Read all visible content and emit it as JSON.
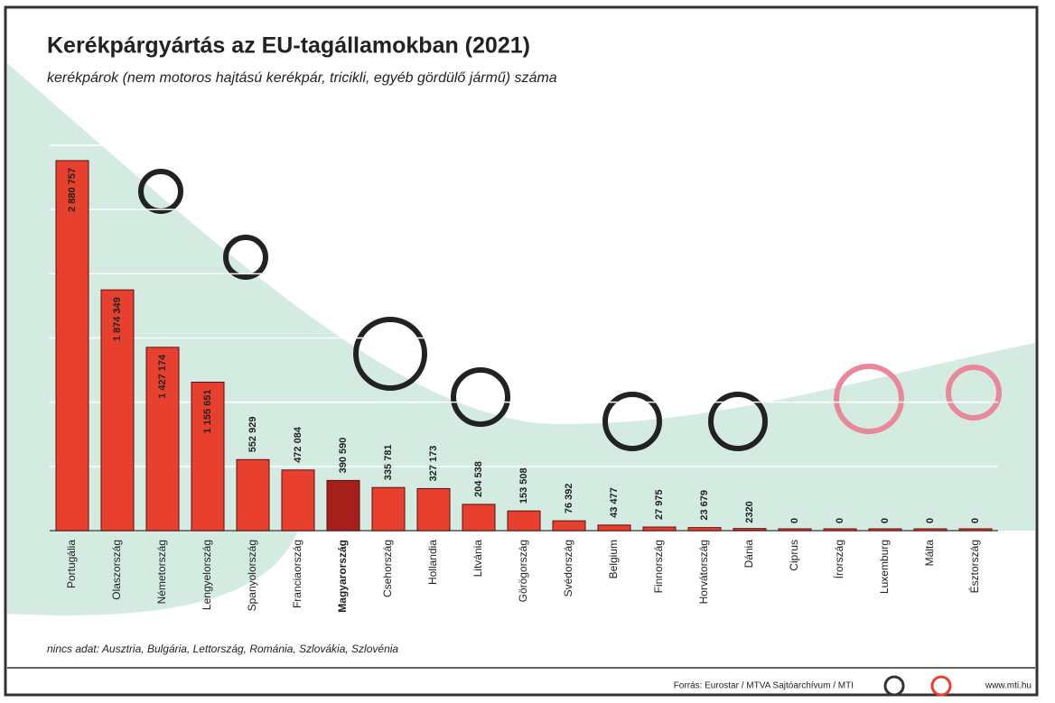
{
  "chart_data": {
    "type": "bar",
    "title": "Kerékpárgyártás az EU-tagállamokban (2021)",
    "subtitle": "kerékpárok (nem motoros hajtású kerékpár, tricikli, egyéb gördülő jármű) száma",
    "categories": [
      "Portugália",
      "Olaszország",
      "Németország",
      "Lengyelország",
      "Spanyolország",
      "Franciaország",
      "Magyarország",
      "Csehország",
      "Hollandia",
      "Litvánia",
      "Görögország",
      "Svédország",
      "Belgium",
      "Finnország",
      "Horvátország",
      "Dánia",
      "Ciprus",
      "Írország",
      "Luxemburg",
      "Málta",
      "Észtország"
    ],
    "values": [
      2880757,
      1874349,
      1427174,
      1155651,
      552929,
      472084,
      390590,
      335781,
      327173,
      204538,
      153508,
      76392,
      43477,
      27975,
      23679,
      2320,
      0,
      0,
      0,
      0,
      0
    ],
    "value_labels": [
      "2 880 757",
      "1 874 349",
      "1 427 174",
      "1 155 651",
      "552 929",
      "472 084",
      "390 590",
      "335 781",
      "327 173",
      "204 538",
      "153 508",
      "76 392",
      "43 477",
      "27 975",
      "23 679",
      "2320",
      "0",
      "0",
      "0",
      "0",
      "0"
    ],
    "colors": [
      "#e8402f",
      "#e8402f",
      "#e8402f",
      "#e8402f",
      "#e8402f",
      "#e8402f",
      "#a61f1b",
      "#e8402f",
      "#e8402f",
      "#e8402f",
      "#e8402f",
      "#e8402f",
      "#e8402f",
      "#e8402f",
      "#e8402f",
      "#e8402f",
      "#e8402f",
      "#e8402f",
      "#e8402f",
      "#e8402f",
      "#e8402f"
    ],
    "ylim": [
      0,
      3000000
    ],
    "yticks": [
      0,
      500000,
      1000000,
      1500000,
      2000000,
      2500000,
      3000000
    ],
    "grid": true,
    "note": "nincs adat: Ausztria, Bulgária, Lettország, Románia, Szlovákia, Szlovénia",
    "source": "Forrás: Eurostar / MTVA Sajtóarchívum / MTI",
    "website": "www.mti.hu"
  }
}
